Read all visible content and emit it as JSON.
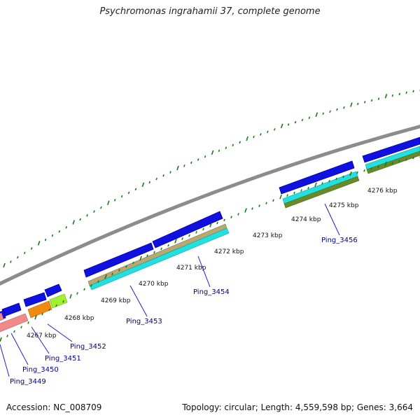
{
  "title": "Psychromonas ingrahamii 37, complete genome",
  "footer": {
    "accession": "Accession: NC_008709",
    "summary": "Topology: circular; Length: 4,559,598 bp; Genes: 3,664"
  },
  "scale_labels": [
    "4267 kbp",
    "4268 kbp",
    "4269 kbp",
    "4270 kbp",
    "4271 kbp",
    "4272 kbp",
    "4273 kbp",
    "4274 kbp",
    "4275 kbp",
    "4276 kbp"
  ],
  "gene_labels": [
    "Ping_3449",
    "Ping_3450",
    "Ping_3451",
    "Ping_3452",
    "Ping_3453",
    "Ping_3454",
    "Ping_3456"
  ],
  "colors": {
    "backbone": "#8c8c8c",
    "cds": "#1010e0",
    "tick": "#1a7a1a",
    "cog_cyan": "#22e0e0",
    "cog_tan": "#b9a870",
    "cog_olive": "#6a8a2a",
    "cog_salmon": "#f08a8a",
    "cog_orange": "#f08a10",
    "cog_lime": "#a0f030",
    "label": "#00008b"
  }
}
